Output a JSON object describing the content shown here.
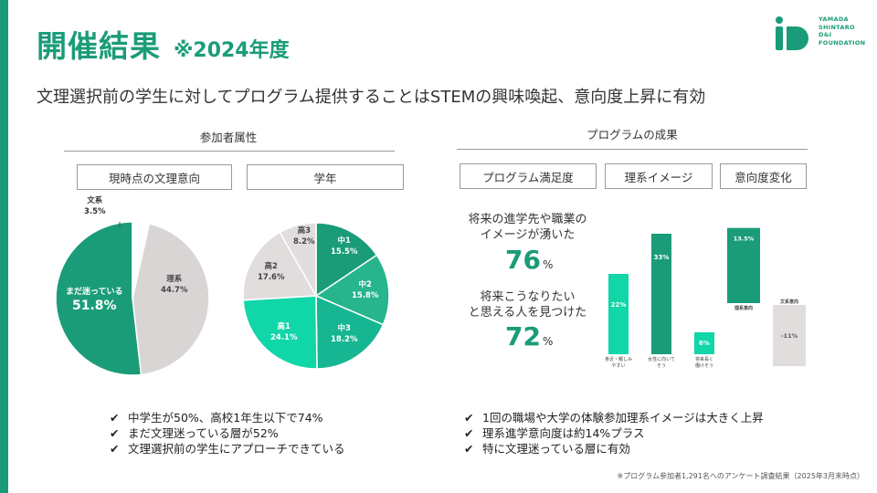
{
  "header": {
    "title": "開催結果",
    "title_sub": "※2024年度",
    "subtitle": "文理選択前の学生に対してプログラム提供することはSTEMの興味喚起、意向度上昇に有効"
  },
  "logo": {
    "lines": [
      "YAMADA",
      "SHINTARO",
      "D&I",
      "FOUNDATION"
    ]
  },
  "left_section": {
    "heading": "参加者属性",
    "box1": "現時点の文理意向",
    "box2": "学年"
  },
  "right_section": {
    "heading": "プログラムの成果",
    "box1": "プログラム満足度",
    "box2": "理系イメージ",
    "box3": "意向度変化"
  },
  "chart_data": [
    {
      "type": "pie",
      "title": "現時点の文理意向",
      "slices": [
        {
          "label": "理系",
          "value": 44.7,
          "color": "#d9d5d5"
        },
        {
          "label": "まだ迷っている",
          "value": 51.8,
          "color": "#1a9c78"
        },
        {
          "label": "文系",
          "value": 3.5,
          "color": "#ffffff"
        }
      ],
      "labels": {
        "rikei": "理系",
        "rikei_val": "44.7%",
        "mayoi": "まだ迷っている",
        "mayoi_val": "51.8%",
        "bunkei": "文系",
        "bunkei_val": "3.5%"
      }
    },
    {
      "type": "pie",
      "title": "学年",
      "slices": [
        {
          "label": "中1",
          "value": 15.5,
          "color": "#1a9c78"
        },
        {
          "label": "中2",
          "value": 15.8,
          "color": "#26b58c"
        },
        {
          "label": "中3",
          "value": 18.2,
          "color": "#16b693"
        },
        {
          "label": "高1",
          "value": 24.1,
          "color": "#10d6a8"
        },
        {
          "label": "高2",
          "value": 17.6,
          "color": "#e1dddd"
        },
        {
          "label": "高3",
          "value": 8.2,
          "color": "#e1dddd"
        }
      ],
      "labels": {
        "c1": "中1",
        "c1_val": "15.5%",
        "c2": "中2",
        "c2_val": "15.8%",
        "c3": "中3",
        "c3_val": "18.2%",
        "k1": "高1",
        "k1_val": "24.1%",
        "k2": "高2",
        "k2_val": "17.6%",
        "k3": "高3",
        "k3_val": "8.2%"
      }
    },
    {
      "type": "bar",
      "title": "理系イメージ",
      "categories": [
        "身近・親しみやすい",
        "女性に向いてそう",
        "将来長く働けそう"
      ],
      "values": [
        22,
        33,
        6
      ],
      "value_labels": [
        "22%",
        "33%",
        "6%"
      ],
      "ylim": [
        0,
        35
      ]
    },
    {
      "type": "bar",
      "title": "意向度変化",
      "categories": [
        "理系意向",
        "文系意向"
      ],
      "values": [
        13.5,
        -11
      ],
      "value_labels": [
        "13.5%",
        "-11%"
      ]
    }
  ],
  "satisfaction": {
    "label1_line1": "将来の進学先や職業の",
    "label1_line2": "イメージが湧いた",
    "val1": "76",
    "label2_line1": "将来こうなりたい",
    "label2_line2": "と思える人を見つけた",
    "val2": "72",
    "pct": "%"
  },
  "bar_labels": {
    "b1_line1": "身近・親しみ",
    "b1_line2": "やすい",
    "b2_line1": "女性に向いて",
    "b2_line2": "そう",
    "b3_line1": "将来長く",
    "b3_line2": "働けそう"
  },
  "bullets_left": [
    "中学生が50%、高校1年生以下で74%",
    "まだ文理迷っている層が52%",
    "文理選択前の学生にアプローチできている"
  ],
  "bullets_right": [
    "1回の職場や大学の体験参加理系イメージは大きく上昇",
    "理系進学意向度は約14%プラス",
    "特に文理迷っている層に有効"
  ],
  "check_mark": "✔",
  "footnote": "※プログラム参加者1,291名へのアンケート調査結果（2025年3月末時点）"
}
